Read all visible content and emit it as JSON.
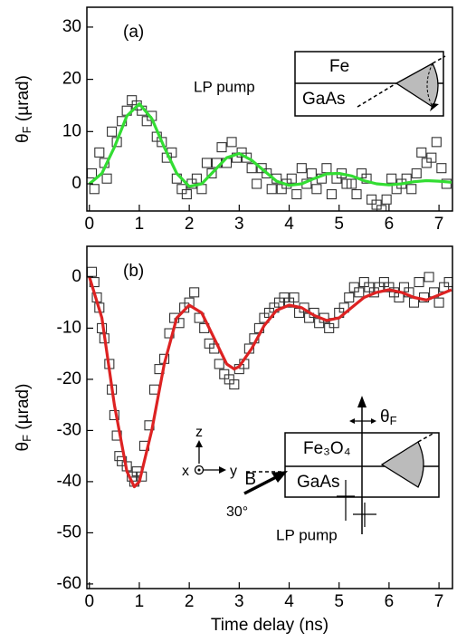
{
  "chart_data": [
    {
      "type": "scatter",
      "panel_label": "(a)",
      "ylabel": {
        "symbol": "θ",
        "subscript": "F",
        "unit": " (µrad)"
      },
      "xlim": [
        -0.05,
        7.27
      ],
      "ylim": [
        -5.2,
        33.8
      ],
      "xticks": [
        0,
        1,
        2,
        3,
        4,
        5,
        6,
        7
      ],
      "yticks": [
        0,
        10,
        20,
        30
      ],
      "points": {
        "x": [
          0.05,
          0.1,
          0.2,
          0.3,
          0.35,
          0.45,
          0.55,
          0.65,
          0.75,
          0.85,
          0.95,
          1.05,
          1.15,
          1.25,
          1.35,
          1.45,
          1.55,
          1.65,
          1.75,
          1.85,
          1.95,
          2.05,
          2.15,
          2.25,
          2.35,
          2.45,
          2.55,
          2.65,
          2.75,
          2.85,
          2.95,
          3.05,
          3.15,
          3.25,
          3.35,
          3.45,
          3.55,
          3.65,
          3.75,
          3.85,
          3.95,
          4.05,
          4.15,
          4.25,
          4.35,
          4.45,
          4.55,
          4.65,
          4.75,
          4.85,
          4.95,
          5.05,
          5.15,
          5.25,
          5.35,
          5.45,
          5.55,
          5.65,
          5.75,
          5.85,
          5.95,
          6.05,
          6.15,
          6.25,
          6.35,
          6.45,
          6.55,
          6.65,
          6.75,
          6.85,
          6.95,
          7.05,
          7.15
        ],
        "y": [
          2,
          -1,
          6,
          4,
          1,
          10,
          8,
          12,
          14,
          16,
          15,
          14,
          12,
          13,
          9,
          8,
          5,
          6,
          1,
          -1,
          -2,
          0,
          1,
          -1,
          4,
          2,
          4,
          7,
          4,
          8,
          5,
          6,
          5,
          3,
          0,
          3,
          2,
          -1,
          1,
          -1,
          0,
          1,
          -2,
          3,
          0,
          2,
          -1,
          1,
          3,
          -2,
          1,
          2,
          0,
          0,
          -2,
          2,
          1,
          -3,
          -4,
          -5,
          -3,
          1,
          -1,
          0,
          1,
          -1,
          2,
          6,
          4,
          5,
          8,
          3,
          0
        ]
      },
      "fit": {
        "color": "#33dd33",
        "x": [
          0,
          0.25,
          0.5,
          0.75,
          1.0,
          1.25,
          1.5,
          1.75,
          2.0,
          2.25,
          2.5,
          2.75,
          3.0,
          3.25,
          3.5,
          3.75,
          4.0,
          4.25,
          4.5,
          4.75,
          5.0,
          5.25,
          5.5,
          5.75,
          6.0,
          6.25,
          6.5,
          6.75,
          7.0,
          7.25
        ],
        "values": [
          0,
          2,
          7,
          13,
          15.3,
          12.5,
          7,
          2,
          -0.5,
          0,
          2.5,
          5,
          5.8,
          4.5,
          2.5,
          0.5,
          -0.3,
          0,
          1,
          1.9,
          2,
          1.5,
          0.6,
          0,
          -0.2,
          0,
          0.4,
          0.6,
          0.5,
          0.3
        ]
      },
      "annotations": {
        "pump": "LP pump",
        "layer_top": "Fe",
        "layer_bottom": "GaAs"
      }
    },
    {
      "type": "scatter",
      "panel_label": "(b)",
      "ylabel": {
        "symbol": "θ",
        "subscript": "F",
        "unit": " (µrad)"
      },
      "xlabel": "Time delay (ns)",
      "xlim": [
        -0.05,
        7.27
      ],
      "ylim": [
        -60.9,
        6
      ],
      "xticks": [
        0,
        1,
        2,
        3,
        4,
        5,
        6,
        7
      ],
      "yticks": [
        -60,
        -50,
        -40,
        -30,
        -20,
        -10,
        0
      ],
      "points": {
        "x": [
          0.05,
          0.1,
          0.15,
          0.2,
          0.25,
          0.3,
          0.4,
          0.45,
          0.5,
          0.55,
          0.6,
          0.65,
          0.75,
          0.85,
          0.9,
          0.95,
          1.05,
          1.1,
          1.2,
          1.3,
          1.4,
          1.5,
          1.6,
          1.7,
          1.8,
          1.9,
          2.0,
          2.1,
          2.2,
          2.3,
          2.4,
          2.5,
          2.6,
          2.7,
          2.8,
          2.9,
          3.0,
          3.1,
          3.2,
          3.3,
          3.4,
          3.5,
          3.6,
          3.7,
          3.8,
          3.9,
          4.0,
          4.1,
          4.2,
          4.3,
          4.4,
          4.5,
          4.6,
          4.7,
          4.8,
          4.9,
          5.0,
          5.1,
          5.2,
          5.3,
          5.4,
          5.5,
          5.6,
          5.7,
          5.8,
          5.9,
          6.0,
          6.1,
          6.2,
          6.3,
          6.4,
          6.5,
          6.6,
          6.7,
          6.8,
          6.9,
          7.0,
          7.1,
          7.2
        ],
        "y": [
          1,
          -1,
          -4,
          -6,
          -10,
          -12,
          -17,
          -22,
          -27,
          -31,
          -35,
          -36,
          -37,
          -39,
          -40,
          -38,
          -39,
          -33,
          -29,
          -22,
          -18,
          -16,
          -11,
          -8,
          -9,
          -6,
          -5,
          -3,
          -8,
          -10,
          -13,
          -14,
          -17,
          -19,
          -20,
          -21,
          -18,
          -17,
          -14,
          -12,
          -10,
          -8,
          -7,
          -6,
          -5,
          -4,
          -5,
          -4,
          -7,
          -6,
          -8,
          -7,
          -9,
          -8,
          -10,
          -9,
          -7,
          -6,
          -4,
          -2,
          -3,
          -1,
          -2,
          -3,
          -2,
          -1,
          -2,
          -3,
          -4,
          -2,
          -3,
          -5,
          -1,
          -4,
          0,
          -3,
          -5,
          -2,
          -1
        ]
      },
      "fit": {
        "color": "#dd2222",
        "x": [
          0,
          0.25,
          0.5,
          0.75,
          0.9,
          1.0,
          1.25,
          1.5,
          1.75,
          2.0,
          2.25,
          2.5,
          2.75,
          2.9,
          3.0,
          3.25,
          3.5,
          3.75,
          4.0,
          4.25,
          4.5,
          4.75,
          5.0,
          5.25,
          5.5,
          5.75,
          6.0,
          6.25,
          6.5,
          6.75,
          7.0,
          7.25
        ],
        "values": [
          0,
          -8,
          -25,
          -38,
          -41,
          -40,
          -30,
          -17,
          -8,
          -5.5,
          -7,
          -12,
          -17,
          -18,
          -17.5,
          -14,
          -9.5,
          -6.5,
          -5.5,
          -6,
          -7.5,
          -8.5,
          -8,
          -6,
          -4,
          -3,
          -2.5,
          -3,
          -4,
          -4.5,
          -3.5,
          -2.5
        ]
      },
      "annotations": {
        "pump": "LP pump",
        "layer_top": "Fe₃O₄",
        "layer_bottom": "GaAs",
        "field": "B",
        "angle": "30°",
        "axis_x": "x",
        "axis_y": "y",
        "axis_z": "z",
        "rotation": {
          "symbol": "θ",
          "subscript": "F"
        }
      }
    }
  ]
}
